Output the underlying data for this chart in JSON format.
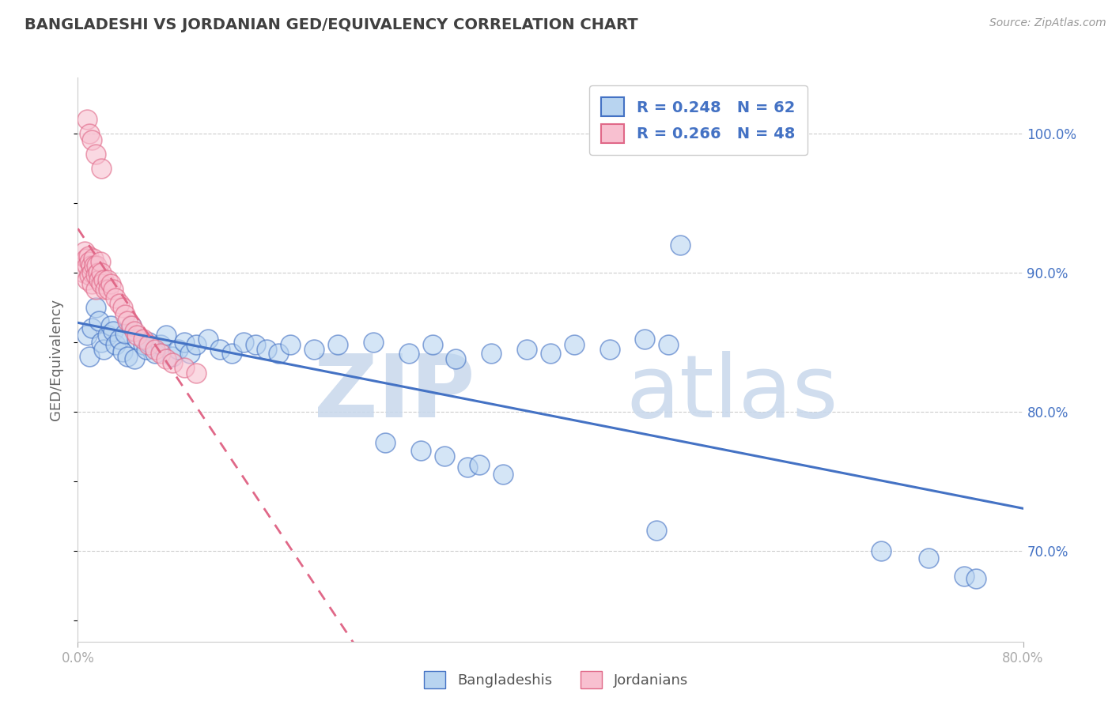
{
  "title": "BANGLADESHI VS JORDANIAN GED/EQUIVALENCY CORRELATION CHART",
  "source": "Source: ZipAtlas.com",
  "ylabel": "GED/Equivalency",
  "xlim": [
    0.0,
    0.8
  ],
  "ylim": [
    0.635,
    1.04
  ],
  "r_blue": 0.248,
  "n_blue": 62,
  "r_pink": 0.266,
  "n_pink": 48,
  "blue_fill": "#B8D4F0",
  "blue_edge": "#4472C4",
  "pink_fill": "#F8C0D0",
  "pink_edge": "#E06888",
  "blue_line_color": "#4472C4",
  "pink_line_color": "#E06888",
  "grid_color": "#CCCCCC",
  "title_color": "#404040",
  "legend_val_color": "#4472C4",
  "source_color": "#999999",
  "watermark_color": "#DCE6F5",
  "blue_x": [
    0.008,
    0.01,
    0.012,
    0.015,
    0.018,
    0.02,
    0.022,
    0.025,
    0.028,
    0.03,
    0.032,
    0.035,
    0.038,
    0.04,
    0.042,
    0.045,
    0.048,
    0.05,
    0.055,
    0.058,
    0.06,
    0.065,
    0.07,
    0.075,
    0.08,
    0.085,
    0.09,
    0.095,
    0.1,
    0.11,
    0.12,
    0.13,
    0.14,
    0.15,
    0.16,
    0.17,
    0.18,
    0.2,
    0.22,
    0.25,
    0.28,
    0.3,
    0.32,
    0.35,
    0.38,
    0.4,
    0.42,
    0.45,
    0.48,
    0.5,
    0.33,
    0.36,
    0.26,
    0.29,
    0.31,
    0.34,
    0.68,
    0.72,
    0.75,
    0.76,
    0.49,
    0.51
  ],
  "blue_y": [
    0.855,
    0.84,
    0.86,
    0.875,
    0.865,
    0.85,
    0.845,
    0.855,
    0.862,
    0.858,
    0.848,
    0.852,
    0.843,
    0.856,
    0.84,
    0.862,
    0.838,
    0.852,
    0.848,
    0.845,
    0.85,
    0.842,
    0.848,
    0.855,
    0.84,
    0.845,
    0.85,
    0.842,
    0.848,
    0.852,
    0.845,
    0.842,
    0.85,
    0.848,
    0.845,
    0.842,
    0.848,
    0.845,
    0.848,
    0.85,
    0.842,
    0.848,
    0.838,
    0.842,
    0.845,
    0.842,
    0.848,
    0.845,
    0.852,
    0.848,
    0.76,
    0.755,
    0.778,
    0.772,
    0.768,
    0.762,
    0.7,
    0.695,
    0.682,
    0.68,
    0.715,
    0.92
  ],
  "pink_x": [
    0.005,
    0.006,
    0.007,
    0.008,
    0.008,
    0.009,
    0.01,
    0.01,
    0.011,
    0.012,
    0.012,
    0.013,
    0.014,
    0.015,
    0.015,
    0.016,
    0.017,
    0.018,
    0.019,
    0.02,
    0.02,
    0.022,
    0.023,
    0.025,
    0.026,
    0.028,
    0.03,
    0.032,
    0.035,
    0.038,
    0.04,
    0.042,
    0.045,
    0.048,
    0.05,
    0.055,
    0.06,
    0.065,
    0.07,
    0.075,
    0.08,
    0.09,
    0.1,
    0.008,
    0.01,
    0.012,
    0.015,
    0.02
  ],
  "pink_y": [
    0.9,
    0.915,
    0.91,
    0.905,
    0.895,
    0.912,
    0.908,
    0.898,
    0.905,
    0.9,
    0.892,
    0.91,
    0.905,
    0.898,
    0.888,
    0.905,
    0.9,
    0.895,
    0.908,
    0.9,
    0.892,
    0.895,
    0.888,
    0.895,
    0.888,
    0.892,
    0.888,
    0.882,
    0.878,
    0.875,
    0.87,
    0.865,
    0.862,
    0.858,
    0.855,
    0.852,
    0.848,
    0.845,
    0.842,
    0.838,
    0.835,
    0.832,
    0.828,
    1.01,
    1.0,
    0.995,
    0.985,
    0.975
  ]
}
